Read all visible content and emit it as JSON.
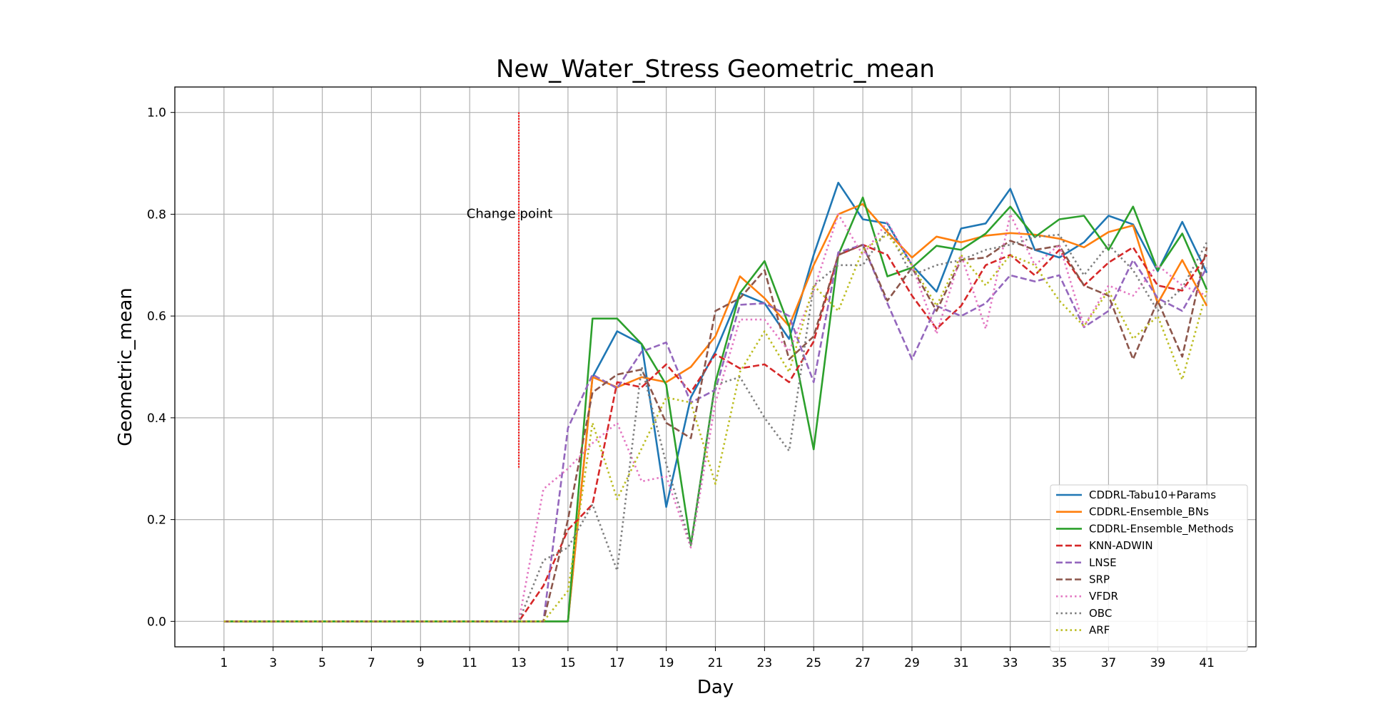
{
  "chart_data": {
    "type": "line",
    "title": "New_Water_Stress Geometric_mean",
    "xlabel": "Day",
    "ylabel": "Geometric_mean",
    "xlim": [
      -1,
      43
    ],
    "ylim": [
      -0.05,
      1.05
    ],
    "x_ticks": [
      "1",
      "3",
      "5",
      "7",
      "9",
      "11",
      "13",
      "15",
      "17",
      "19",
      "21",
      "23",
      "25",
      "27",
      "29",
      "31",
      "33",
      "35",
      "37",
      "39",
      "41"
    ],
    "y_ticks": [
      "0.0",
      "0.2",
      "0.4",
      "0.6",
      "0.8",
      "1.0"
    ],
    "grid": true,
    "legend_position": "lower-right",
    "annotation": {
      "text": "Change point",
      "x": 13,
      "y": 0.8,
      "line_x": 13,
      "line_y": [
        0.3,
        1.0
      ],
      "color": "#ff0000"
    },
    "x": [
      1,
      2,
      3,
      4,
      5,
      6,
      7,
      8,
      9,
      10,
      11,
      12,
      13,
      14,
      15,
      16,
      17,
      18,
      19,
      20,
      21,
      22,
      23,
      24,
      25,
      26,
      27,
      28,
      29,
      30,
      31,
      32,
      33,
      34,
      35,
      36,
      37,
      38,
      39,
      40,
      41
    ],
    "series": [
      {
        "name": "CDDRL-Tabu10+Params",
        "color": "#1f77b4",
        "dash": "solid",
        "values": [
          0,
          0,
          0,
          0,
          0,
          0,
          0,
          0,
          0,
          0,
          0,
          0,
          0,
          0,
          0,
          0.48,
          0.57,
          0.545,
          0.225,
          0.44,
          0.53,
          0.645,
          0.625,
          0.555,
          0.72,
          0.862,
          0.79,
          0.782,
          0.7,
          0.648,
          0.772,
          0.782,
          0.85,
          0.73,
          0.715,
          0.745,
          0.797,
          0.78,
          0.688,
          0.785,
          0.685
        ]
      },
      {
        "name": "CDDRL-Ensemble_BNs",
        "color": "#ff7f0e",
        "dash": "solid",
        "values": [
          0,
          0,
          0,
          0,
          0,
          0,
          0,
          0,
          0,
          0,
          0,
          0,
          0,
          0,
          0,
          0.48,
          0.46,
          0.48,
          0.47,
          0.5,
          0.56,
          0.678,
          0.635,
          0.58,
          0.7,
          0.8,
          0.82,
          0.765,
          0.715,
          0.756,
          0.745,
          0.758,
          0.763,
          0.76,
          0.752,
          0.735,
          0.765,
          0.778,
          0.625,
          0.71,
          0.62
        ]
      },
      {
        "name": "CDDRL-Ensemble_Methods",
        "color": "#2ca02c",
        "dash": "solid",
        "values": [
          0,
          0,
          0,
          0,
          0,
          0,
          0,
          0,
          0,
          0,
          0,
          0,
          0,
          0,
          0,
          0.595,
          0.595,
          0.545,
          0.465,
          0.15,
          0.47,
          0.645,
          0.708,
          0.58,
          0.338,
          0.72,
          0.833,
          0.678,
          0.695,
          0.738,
          0.73,
          0.762,
          0.815,
          0.755,
          0.79,
          0.797,
          0.73,
          0.815,
          0.69,
          0.762,
          0.652
        ]
      },
      {
        "name": "KNN-ADWIN",
        "color": "#d62728",
        "dash": "dashed",
        "values": [
          0,
          0,
          0,
          0,
          0,
          0,
          0,
          0,
          0,
          0,
          0,
          0,
          0,
          0.07,
          0.18,
          0.23,
          0.47,
          0.46,
          0.505,
          0.45,
          0.525,
          0.497,
          0.505,
          0.47,
          0.55,
          0.72,
          0.74,
          0.72,
          0.64,
          0.575,
          0.62,
          0.7,
          0.72,
          0.68,
          0.73,
          0.66,
          0.705,
          0.735,
          0.66,
          0.65,
          0.72
        ]
      },
      {
        "name": "LNSE",
        "color": "#9467bd",
        "dash": "dashed",
        "values": [
          0,
          0,
          0,
          0,
          0,
          0,
          0,
          0,
          0,
          0,
          0,
          0,
          0,
          0,
          0.38,
          0.485,
          0.458,
          0.53,
          0.548,
          0.43,
          0.455,
          0.622,
          0.625,
          0.6,
          0.47,
          0.725,
          0.74,
          0.625,
          0.515,
          0.62,
          0.6,
          0.625,
          0.68,
          0.668,
          0.68,
          0.578,
          0.61,
          0.71,
          0.635,
          0.61,
          0.695
        ]
      },
      {
        "name": "SRP",
        "color": "#8c564b",
        "dash": "dashed",
        "values": [
          0,
          0,
          0,
          0,
          0,
          0,
          0,
          0,
          0,
          0,
          0,
          0,
          0,
          0,
          0.2,
          0.45,
          0.485,
          0.495,
          0.39,
          0.36,
          0.61,
          0.635,
          0.69,
          0.515,
          0.56,
          0.72,
          0.74,
          0.63,
          0.695,
          0.61,
          0.71,
          0.715,
          0.748,
          0.73,
          0.738,
          0.66,
          0.64,
          0.515,
          0.63,
          0.52,
          0.735
        ]
      },
      {
        "name": "VFDR",
        "color": "#e377c2",
        "dash": "dotted",
        "values": [
          0,
          0,
          0,
          0,
          0,
          0,
          0,
          0,
          0,
          0,
          0,
          0,
          0,
          0.26,
          0.3,
          0.35,
          0.39,
          0.275,
          0.285,
          0.145,
          0.43,
          0.593,
          0.593,
          0.53,
          0.65,
          0.8,
          0.72,
          0.785,
          0.7,
          0.565,
          0.72,
          0.575,
          0.8,
          0.7,
          0.74,
          0.58,
          0.66,
          0.64,
          0.7,
          0.66,
          0.64
        ]
      },
      {
        "name": "OBC",
        "color": "#7f7f7f",
        "dash": "dotted",
        "values": [
          0,
          0,
          0,
          0,
          0,
          0,
          0,
          0,
          0,
          0,
          0,
          0,
          0,
          0.12,
          0.145,
          0.23,
          0.1,
          0.5,
          0.31,
          0.15,
          0.465,
          0.48,
          0.4,
          0.335,
          0.66,
          0.7,
          0.7,
          0.77,
          0.68,
          0.7,
          0.71,
          0.73,
          0.74,
          0.755,
          0.76,
          0.68,
          0.74,
          0.69,
          0.61,
          0.655,
          0.745
        ]
      },
      {
        "name": "ARF",
        "color": "#bcbd22",
        "dash": "dotted",
        "values": [
          0,
          0,
          0,
          0,
          0,
          0,
          0,
          0,
          0,
          0,
          0,
          0,
          0,
          0,
          0.06,
          0.39,
          0.24,
          0.34,
          0.44,
          0.43,
          0.27,
          0.49,
          0.57,
          0.49,
          0.66,
          0.61,
          0.73,
          0.76,
          0.7,
          0.62,
          0.72,
          0.66,
          0.72,
          0.7,
          0.63,
          0.58,
          0.65,
          0.555,
          0.6,
          0.475,
          0.65
        ]
      }
    ]
  }
}
